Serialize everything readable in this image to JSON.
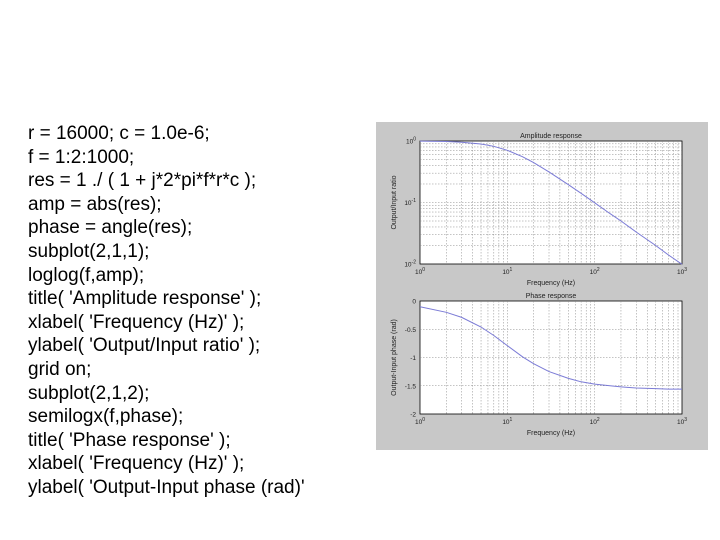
{
  "code_lines": [
    "r = 16000; c = 1.0e-6;",
    "f = 1:2:1000;",
    "res = 1 ./ ( 1 + j*2*pi*f*r*c );",
    "amp = abs(res);",
    "phase = angle(res);",
    "subplot(2,1,1);",
    "loglog(f,amp);",
    "title( 'Amplitude response' );",
    "xlabel( 'Frequency (Hz)' );",
    "ylabel( 'Output/Input ratio' );",
    "grid on;",
    "subplot(2,1,2);",
    "semilogx(f,phase);",
    "title( 'Phase response' );",
    "xlabel( 'Frequency (Hz)' );",
    "ylabel( 'Output-Input phase (rad)'"
  ],
  "chart_data": [
    {
      "type": "line",
      "title": "Amplitude response",
      "xlabel": "Frequency (Hz)",
      "ylabel": "Output/Input ratio",
      "xscale": "log",
      "yscale": "log",
      "xlim": [
        1,
        1000
      ],
      "ylim": [
        0.01,
        1
      ],
      "grid": true,
      "x_ticks": [
        {
          "value": 1,
          "label": "10",
          "exp": "0"
        },
        {
          "value": 10,
          "label": "10",
          "exp": "1"
        },
        {
          "value": 100,
          "label": "10",
          "exp": "2"
        },
        {
          "value": 1000,
          "label": "10",
          "exp": "3"
        }
      ],
      "y_ticks": [
        {
          "value": 0.01,
          "label": "10",
          "exp": "-2"
        },
        {
          "value": 0.1,
          "label": "10",
          "exp": "-1"
        },
        {
          "value": 1,
          "label": "10",
          "exp": "0"
        }
      ],
      "series": [
        {
          "color": "#7b7bd6",
          "x": [
            1,
            2,
            3,
            5,
            7,
            10,
            15,
            20,
            30,
            50,
            70,
            100,
            150,
            200,
            300,
            500,
            700,
            1000
          ],
          "y": [
            0.995,
            0.98,
            0.957,
            0.894,
            0.82,
            0.705,
            0.553,
            0.446,
            0.315,
            0.195,
            0.141,
            0.099,
            0.066,
            0.05,
            0.033,
            0.02,
            0.014,
            0.0099
          ]
        }
      ]
    },
    {
      "type": "line",
      "title": "Phase response",
      "xlabel": "Frequency (Hz)",
      "ylabel": "Output-Input phase (rad)",
      "xscale": "log",
      "yscale": "linear",
      "xlim": [
        1,
        1000
      ],
      "ylim": [
        -2,
        0
      ],
      "grid": true,
      "x_ticks": [
        {
          "value": 1,
          "label": "10",
          "exp": "0"
        },
        {
          "value": 10,
          "label": "10",
          "exp": "1"
        },
        {
          "value": 100,
          "label": "10",
          "exp": "2"
        },
        {
          "value": 1000,
          "label": "10",
          "exp": "3"
        }
      ],
      "y_ticks": [
        {
          "value": 0,
          "label": "0"
        },
        {
          "value": -0.5,
          "label": "-0.5"
        },
        {
          "value": -1,
          "label": "-1"
        },
        {
          "value": -1.5,
          "label": "-1.5"
        },
        {
          "value": -2,
          "label": "-2"
        }
      ],
      "series": [
        {
          "color": "#7b7bd6",
          "x": [
            1,
            2,
            3,
            5,
            7,
            10,
            15,
            20,
            30,
            50,
            70,
            100,
            150,
            200,
            300,
            500,
            700,
            1000
          ],
          "y": [
            -0.1,
            -0.2,
            -0.29,
            -0.46,
            -0.61,
            -0.79,
            -0.99,
            -1.11,
            -1.25,
            -1.37,
            -1.43,
            -1.47,
            -1.5,
            -1.52,
            -1.54,
            -1.55,
            -1.56,
            -1.56
          ]
        }
      ]
    }
  ]
}
